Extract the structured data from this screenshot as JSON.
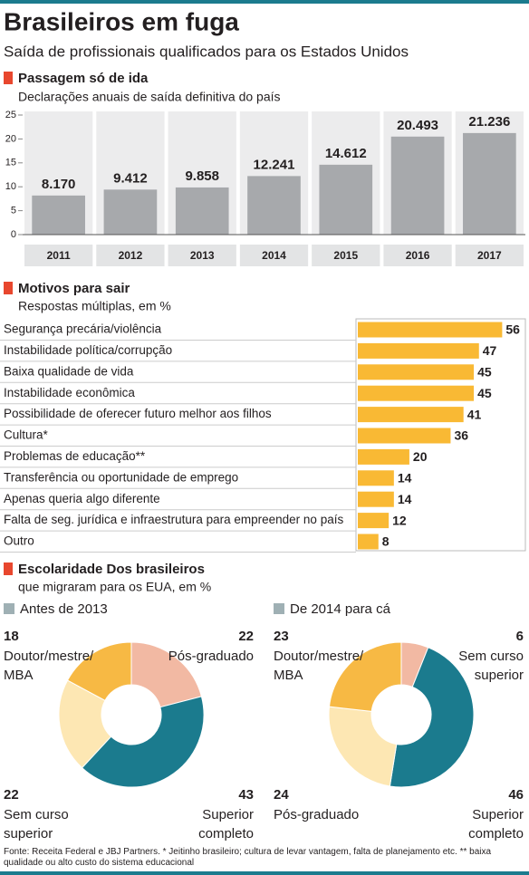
{
  "title": "Brasileiros em fuga",
  "subtitle": "Saída de profissionais qualificados para os Estados Unidos",
  "section": {
    "title": "Escolaridade Dos brasileiros",
    "subtitle": "que migraram para os EUA, em %"
  },
  "source": "Fonte: Receita Federal e JBJ Partners. * Jeitinho brasileiro; cultura de levar vantagem, falta de planejamento etc. ** baixa qualidade ou alto custo do sistema educacional",
  "chart_data": [
    {
      "type": "bar",
      "title": "Passagem só de ida",
      "subtitle": "Declarações anuais de saída definitiva do país",
      "categories": [
        "2011",
        "2012",
        "2013",
        "2014",
        "2015",
        "2016",
        "2017"
      ],
      "values": [
        8.17,
        9.412,
        9.858,
        12.241,
        14.612,
        20.493,
        21.236
      ],
      "value_labels": [
        "8.170",
        "9.412",
        "9.858",
        "12.241",
        "14.612",
        "20.493",
        "21.236"
      ],
      "color": "#a7a9ac",
      "ylim": [
        0,
        25
      ],
      "yticks": [
        0,
        5,
        10,
        15,
        20,
        25
      ]
    },
    {
      "type": "hbar",
      "title": "Motivos para sair",
      "subtitle": "Respostas múltiplas, em %",
      "categories": [
        "Segurança precária/violência",
        "Instabilidade política/corrupção",
        "Baixa qualidade de vida",
        "Instabilidade econômica",
        "Possibilidade de oferecer futuro melhor aos filhos",
        "Cultura*",
        "Problemas de educação**",
        "Transferência ou oportunidade de emprego",
        "Apenas queria algo diferente",
        "Falta de seg. jurídica e infraestrutura para empreender no país",
        "Outro"
      ],
      "values": [
        56,
        47,
        45,
        45,
        41,
        36,
        20,
        14,
        14,
        12,
        8
      ],
      "color": "#f9b934",
      "xlim": [
        0,
        65
      ]
    },
    {
      "type": "donut",
      "title": "Antes de 2013",
      "legend_color": "#9fb0b4",
      "categories": [
        "Pós-graduado",
        "Superior\ncompleto",
        "Sem curso\nsuperior",
        "Doutor/mestre/\nMBA"
      ],
      "values": [
        22,
        43,
        22,
        18
      ],
      "colors": [
        "#f2b9a3",
        "#1b7b8e",
        "#fde7b3",
        "#f7b944"
      ]
    },
    {
      "type": "donut",
      "title": "De 2014 para cá",
      "legend_color": "#9fb0b4",
      "categories": [
        "Sem curso\nsuperior",
        "Superior\ncompleto",
        "Pós-graduado",
        "Doutor/mestre/\nMBA"
      ],
      "values": [
        6,
        46,
        24,
        23
      ],
      "colors": [
        "#f2b9a3",
        "#1b7b8e",
        "#fde7b3",
        "#f7b944"
      ]
    }
  ]
}
